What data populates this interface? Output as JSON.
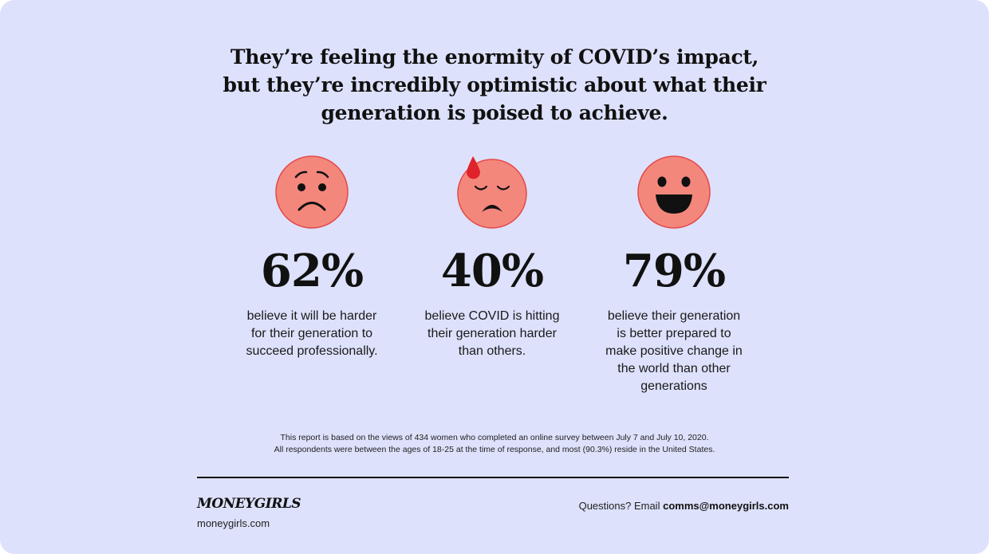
{
  "headline": {
    "line1": "They’re feeling the enormity of COVID’s impact,",
    "line2": "but they’re incredibly optimistic about what their",
    "line3": "generation is poised to achieve."
  },
  "colors": {
    "background": "#dde1fb",
    "face": "#f4877c",
    "face_outline": "#e34949",
    "sweat_drop": "#e0222b",
    "ink": "#111111"
  },
  "stats": [
    {
      "icon": "worried-face-icon",
      "percent": "62%",
      "desc": [
        "believe it will be harder",
        "for their generation to",
        "succeed professionally."
      ]
    },
    {
      "icon": "downcast-sweat-face-icon",
      "percent": "40%",
      "desc": [
        "believe COVID is hitting",
        "their generation harder",
        "than others."
      ]
    },
    {
      "icon": "grinning-face-icon",
      "percent": "79%",
      "desc": [
        "believe their generation",
        "is better prepared to",
        "make positive change in",
        "the world than other",
        "generations"
      ]
    }
  ],
  "footnote": {
    "line1": "This report is based on the views of 434 women who completed an online survey between July 7 and July 10, 2020.",
    "line2": "All respondents were between the ages of 18-25 at the time of response, and most (90.3%) reside in the United States."
  },
  "footer": {
    "brand": "MONEYGIRLS",
    "site": "moneygirls.com",
    "contact_prefix": "Questions? Email",
    "contact_email": "comms@moneygirls.com"
  }
}
